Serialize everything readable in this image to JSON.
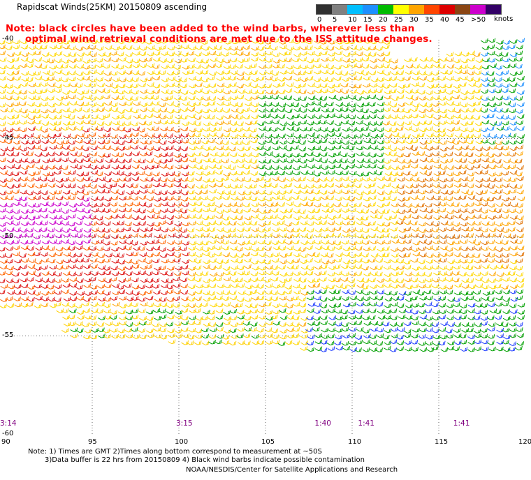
{
  "title": "Rapidscat Winds(25KM) 20150809 ascending",
  "note": {
    "line1": "Note: black circles have been added to the wind barbs, wherever less than",
    "line2": "optimal wind retrieval conditions are met due to the ISS attitude changes."
  },
  "legend": {
    "labels": [
      "0",
      "5",
      "10",
      "15",
      "20",
      "25",
      "30",
      "35",
      "40",
      "45",
      ">50"
    ],
    "units": "knots",
    "colors": [
      "#303030",
      "#808080",
      "#00bfff",
      "#1e90ff",
      "#00bb00",
      "#ffff00",
      "#ffa500",
      "#ff4500",
      "#dd0000",
      "#8b4513",
      "#cc00cc",
      "#330066"
    ]
  },
  "axes": {
    "lon_labels": [
      "90",
      "95",
      "100",
      "105",
      "110",
      "115",
      "120"
    ],
    "lat_labels": [
      "-40",
      "-45",
      "-50",
      "-55",
      "-60"
    ]
  },
  "time_labels": [
    {
      "text": "3:14",
      "lon": 90
    },
    {
      "text": "3:15",
      "lon": 100
    },
    {
      "text": "1:40",
      "lon": 108
    },
    {
      "text": "1:41",
      "lon": 110.5
    },
    {
      "text": "1:41",
      "lon": 116
    }
  ],
  "footer": {
    "line1": "Note: 1) Times are GMT 2)Times along bottom correspond to measurement at ~50S",
    "line2": "3)Data buffer is 22 hrs from 20150809 4) Black wind barbs indicate possible contamination",
    "line3": "NOAA/NESDIS/Center for Satellite Applications and Research"
  }
}
